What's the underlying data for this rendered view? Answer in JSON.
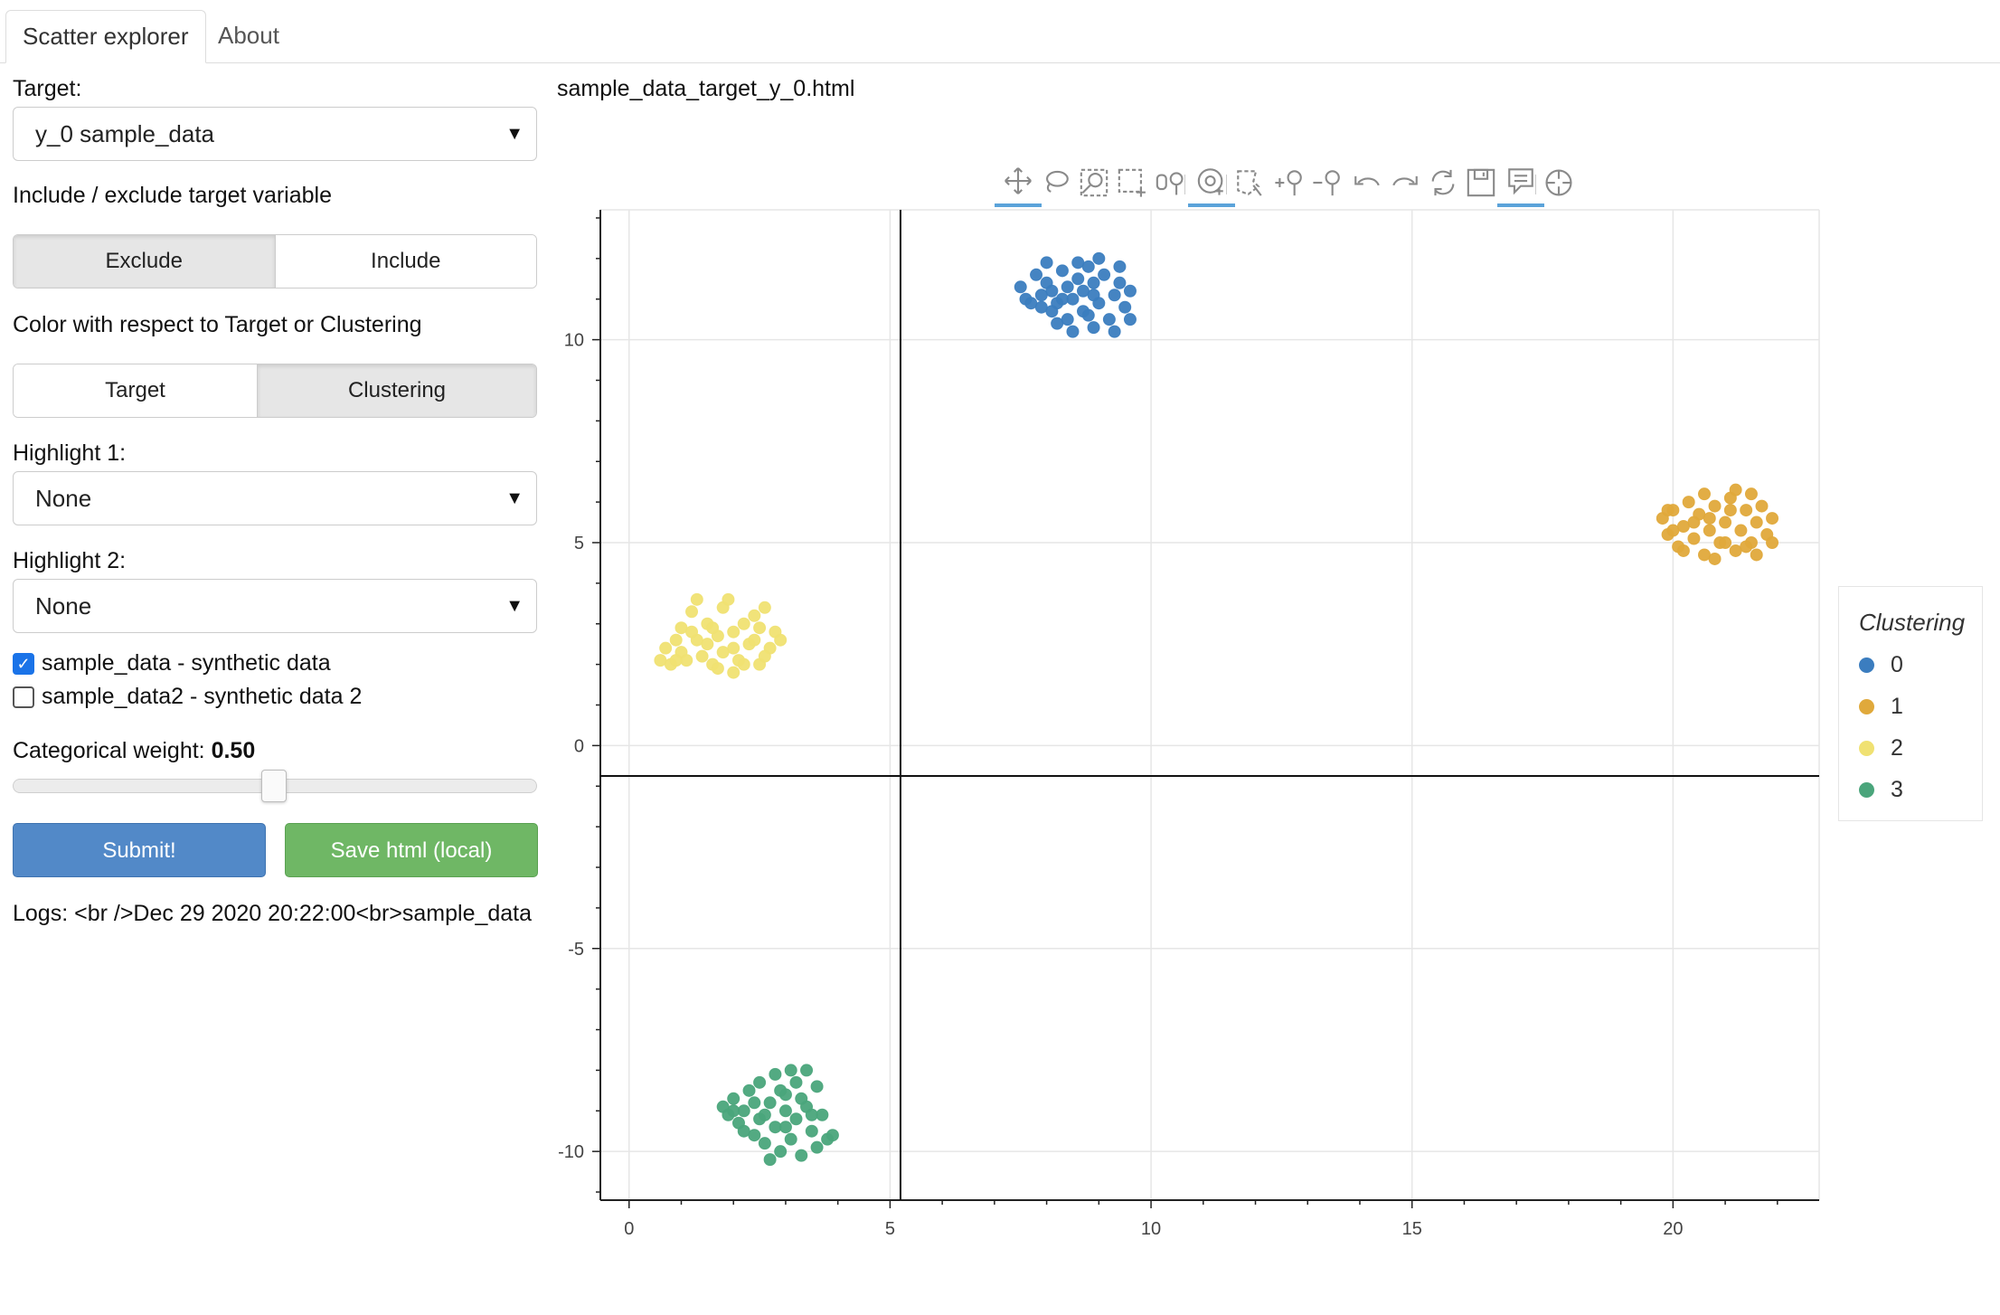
{
  "tabs": [
    {
      "label": "Scatter explorer"
    },
    {
      "label": "About"
    }
  ],
  "sidebar": {
    "target_label": "Target:",
    "target_value": "y_0 sample_data",
    "include_label": "Include / exclude target variable",
    "include_options": [
      "Exclude",
      "Include"
    ],
    "include_selected": "Exclude",
    "color_label": "Color with respect to Target or Clustering",
    "color_options": [
      "Target",
      "Clustering"
    ],
    "color_selected": "Clustering",
    "highlight1_label": "Highlight 1:",
    "highlight1_value": "None",
    "highlight2_label": "Highlight 2:",
    "highlight2_value": "None",
    "datasets": [
      {
        "label": "sample_data - synthetic data",
        "checked": true
      },
      {
        "label": "sample_data2 - synthetic data 2",
        "checked": false
      }
    ],
    "weight_label": "Categorical weight: ",
    "weight_value": "0.50",
    "submit_label": "Submit!",
    "save_label": "Save html (local)",
    "logs": "Logs: <br />Dec 29 2020 20:22:00<br>sample_data"
  },
  "plot": {
    "title": "sample_data_target_y_0.html"
  },
  "toolbar": [
    {
      "icon": "pan-icon",
      "active": true
    },
    {
      "icon": "lasso-select-icon",
      "active": false
    },
    {
      "icon": "box-zoom-icon",
      "active": false
    },
    {
      "icon": "box-select-icon",
      "active": false
    },
    {
      "icon": "zoom-in-out-icon",
      "active": false
    },
    {
      "icon": "wheel-zoom-icon",
      "active": true
    },
    {
      "icon": "poly-select-icon",
      "active": false
    },
    {
      "icon": "zoom-in-icon",
      "active": false
    },
    {
      "icon": "zoom-out-icon",
      "active": false
    },
    {
      "icon": "undo-icon",
      "active": false
    },
    {
      "icon": "redo-icon",
      "active": false
    },
    {
      "icon": "reset-icon",
      "active": false
    },
    {
      "icon": "save-icon",
      "active": false
    },
    {
      "icon": "hover-icon",
      "active": true
    },
    {
      "icon": "crosshair-icon",
      "active": false
    }
  ],
  "chart_data": {
    "type": "scatter",
    "xlim": [
      -0.55,
      22.8
    ],
    "ylim": [
      -11.2,
      13.2
    ],
    "x_ticks": [
      0,
      5,
      10,
      15,
      20
    ],
    "y_ticks": [
      -10,
      -5,
      0,
      5,
      10
    ],
    "grid": true,
    "crosshair": {
      "x": 5.2,
      "y": -0.75
    },
    "legend": {
      "title": "Clustering",
      "placement": "right"
    },
    "series": [
      {
        "name": "0",
        "color": "#3b7dbf",
        "center": [
          8.6,
          11.1
        ],
        "spread": [
          0.85,
          0.5
        ],
        "points": [
          [
            7.5,
            11.3
          ],
          [
            7.6,
            11.0
          ],
          [
            7.8,
            11.6
          ],
          [
            7.9,
            10.8
          ],
          [
            8.0,
            11.4
          ],
          [
            8.1,
            11.2
          ],
          [
            8.2,
            10.9
          ],
          [
            8.3,
            11.7
          ],
          [
            8.4,
            11.3
          ],
          [
            8.4,
            10.5
          ],
          [
            8.5,
            11.0
          ],
          [
            8.6,
            11.5
          ],
          [
            8.7,
            10.7
          ],
          [
            8.7,
            11.2
          ],
          [
            8.8,
            11.8
          ],
          [
            8.9,
            10.3
          ],
          [
            8.9,
            11.4
          ],
          [
            9.0,
            10.9
          ],
          [
            9.1,
            11.6
          ],
          [
            9.2,
            10.5
          ],
          [
            9.3,
            11.1
          ],
          [
            9.4,
            11.4
          ],
          [
            9.5,
            10.8
          ],
          [
            9.6,
            11.2
          ],
          [
            8.2,
            10.4
          ],
          [
            8.0,
            11.9
          ],
          [
            7.7,
            10.9
          ],
          [
            8.5,
            10.2
          ],
          [
            9.0,
            12.0
          ],
          [
            9.3,
            10.2
          ],
          [
            8.6,
            11.9
          ],
          [
            7.9,
            11.1
          ],
          [
            8.3,
            11.0
          ],
          [
            8.8,
            10.6
          ],
          [
            9.4,
            11.8
          ],
          [
            9.6,
            10.5
          ],
          [
            8.1,
            10.7
          ],
          [
            8.9,
            11.1
          ]
        ]
      },
      {
        "name": "1",
        "color": "#e0a93b",
        "center": [
          21.0,
          5.4
        ],
        "spread": [
          0.9,
          0.6
        ],
        "points": [
          [
            19.8,
            5.6
          ],
          [
            19.9,
            5.2
          ],
          [
            20.0,
            5.8
          ],
          [
            20.1,
            4.9
          ],
          [
            20.2,
            5.4
          ],
          [
            20.3,
            6.0
          ],
          [
            20.4,
            5.1
          ],
          [
            20.5,
            5.7
          ],
          [
            20.6,
            4.7
          ],
          [
            20.7,
            5.3
          ],
          [
            20.8,
            5.9
          ],
          [
            20.9,
            5.0
          ],
          [
            21.0,
            5.5
          ],
          [
            21.1,
            6.1
          ],
          [
            21.2,
            4.8
          ],
          [
            21.3,
            5.3
          ],
          [
            21.4,
            5.8
          ],
          [
            21.5,
            5.0
          ],
          [
            21.6,
            5.5
          ],
          [
            21.7,
            5.9
          ],
          [
            21.8,
            5.2
          ],
          [
            21.9,
            5.6
          ],
          [
            20.2,
            4.8
          ],
          [
            20.6,
            6.2
          ],
          [
            21.2,
            6.3
          ],
          [
            21.6,
            4.7
          ],
          [
            20.0,
            5.3
          ],
          [
            20.8,
            4.6
          ],
          [
            21.4,
            4.9
          ],
          [
            21.9,
            5.0
          ],
          [
            20.4,
            5.5
          ],
          [
            21.0,
            5.0
          ],
          [
            20.7,
            5.6
          ],
          [
            21.1,
            5.8
          ],
          [
            19.9,
            5.8
          ],
          [
            21.5,
            6.2
          ]
        ]
      },
      {
        "name": "2",
        "color": "#f0e172",
        "center": [
          1.9,
          2.7
        ],
        "spread": [
          0.95,
          0.55
        ],
        "points": [
          [
            0.6,
            2.1
          ],
          [
            0.7,
            2.4
          ],
          [
            0.8,
            2.0
          ],
          [
            0.9,
            2.6
          ],
          [
            1.0,
            2.3
          ],
          [
            1.0,
            2.9
          ],
          [
            1.1,
            2.1
          ],
          [
            1.2,
            3.3
          ],
          [
            1.3,
            2.6
          ],
          [
            1.3,
            3.6
          ],
          [
            1.4,
            2.2
          ],
          [
            1.5,
            3.0
          ],
          [
            1.6,
            2.0
          ],
          [
            1.7,
            2.7
          ],
          [
            1.8,
            3.4
          ],
          [
            1.8,
            2.3
          ],
          [
            1.9,
            3.6
          ],
          [
            2.0,
            2.8
          ],
          [
            2.1,
            2.1
          ],
          [
            2.2,
            3.0
          ],
          [
            2.3,
            2.5
          ],
          [
            2.4,
            3.2
          ],
          [
            2.5,
            2.0
          ],
          [
            2.5,
            2.9
          ],
          [
            2.6,
            3.4
          ],
          [
            2.7,
            2.4
          ],
          [
            2.8,
            2.8
          ],
          [
            2.9,
            2.6
          ],
          [
            1.5,
            2.5
          ],
          [
            2.2,
            2.0
          ],
          [
            1.2,
            2.8
          ],
          [
            2.0,
            2.4
          ],
          [
            2.6,
            2.2
          ],
          [
            0.9,
            2.1
          ],
          [
            1.6,
            2.9
          ],
          [
            2.4,
            2.6
          ],
          [
            2.0,
            1.8
          ],
          [
            1.7,
            1.9
          ]
        ]
      },
      {
        "name": "3",
        "color": "#4aa57b",
        "center": [
          2.8,
          -9.2
        ],
        "spread": [
          0.8,
          0.65
        ],
        "points": [
          [
            1.8,
            -8.9
          ],
          [
            1.9,
            -9.1
          ],
          [
            2.0,
            -8.7
          ],
          [
            2.1,
            -9.3
          ],
          [
            2.2,
            -9.0
          ],
          [
            2.3,
            -8.5
          ],
          [
            2.4,
            -9.6
          ],
          [
            2.5,
            -9.2
          ],
          [
            2.5,
            -8.3
          ],
          [
            2.6,
            -9.8
          ],
          [
            2.7,
            -8.8
          ],
          [
            2.8,
            -9.4
          ],
          [
            2.8,
            -8.1
          ],
          [
            2.9,
            -10.0
          ],
          [
            3.0,
            -9.0
          ],
          [
            3.0,
            -8.6
          ],
          [
            3.1,
            -9.7
          ],
          [
            3.2,
            -8.3
          ],
          [
            3.2,
            -9.2
          ],
          [
            3.3,
            -10.1
          ],
          [
            3.4,
            -8.9
          ],
          [
            3.5,
            -9.5
          ],
          [
            3.6,
            -8.4
          ],
          [
            3.7,
            -9.1
          ],
          [
            3.8,
            -9.7
          ],
          [
            3.9,
            -9.6
          ],
          [
            2.4,
            -8.8
          ],
          [
            2.7,
            -10.2
          ],
          [
            3.1,
            -8.0
          ],
          [
            3.4,
            -8.0
          ],
          [
            2.2,
            -9.5
          ],
          [
            3.6,
            -9.9
          ],
          [
            2.6,
            -9.1
          ],
          [
            3.0,
            -9.4
          ],
          [
            3.3,
            -8.7
          ],
          [
            2.9,
            -8.5
          ],
          [
            3.5,
            -9.1
          ],
          [
            2.0,
            -9.0
          ]
        ]
      }
    ]
  }
}
